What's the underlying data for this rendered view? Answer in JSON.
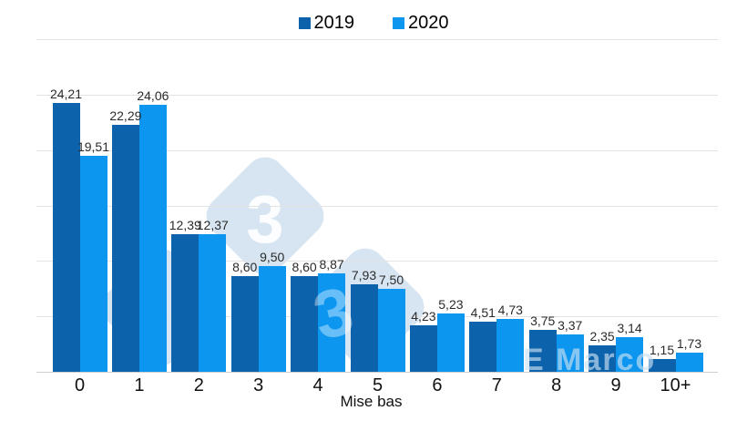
{
  "legend": {
    "items": [
      {
        "label": "2019",
        "color": "#0d63ab"
      },
      {
        "label": "2020",
        "color": "#0c96f0"
      }
    ]
  },
  "watermark": {
    "digit": "3",
    "text": "E Marco"
  },
  "chart_data": {
    "type": "bar",
    "title": "",
    "xlabel": "Mise bas",
    "ylabel": "",
    "ylim": [
      0,
      30
    ],
    "grid": true,
    "grid_step": 5,
    "legend_position": "top-center",
    "value_label_decimals": 2,
    "decimal_separator": ",",
    "categories": [
      "0",
      "1",
      "2",
      "3",
      "4",
      "5",
      "6",
      "7",
      "8",
      "9",
      "10+"
    ],
    "series": [
      {
        "name": "2019",
        "color": "#0d63ab",
        "values": [
          24.21,
          22.29,
          12.39,
          8.6,
          8.6,
          7.93,
          4.23,
          4.51,
          3.75,
          2.35,
          1.15
        ]
      },
      {
        "name": "2020",
        "color": "#0c96f0",
        "values": [
          19.51,
          24.06,
          12.37,
          9.5,
          8.87,
          7.5,
          5.23,
          4.73,
          3.37,
          3.14,
          1.73
        ]
      }
    ]
  },
  "colors": {
    "background": "#ffffff",
    "gridline": "#e3e3e3",
    "axis_line": "#cfcfcf",
    "watermark_fill": "#d7e5f2"
  }
}
